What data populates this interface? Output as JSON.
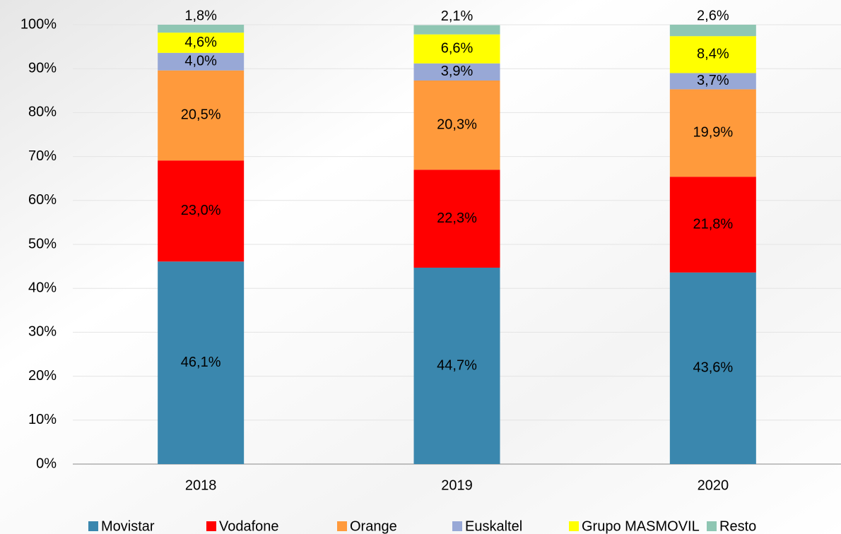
{
  "chart_data": {
    "type": "stacked_bar",
    "categories": [
      "2018",
      "2019",
      "2020"
    ],
    "series": [
      {
        "name": "Movistar",
        "color": "#3a87ae",
        "values": [
          46.1,
          44.7,
          43.6
        ],
        "value_labels": [
          "46,1%",
          "44,7%",
          "43,6%"
        ]
      },
      {
        "name": "Vodafone",
        "color": "#ff0000",
        "values": [
          23.0,
          22.3,
          21.8
        ],
        "value_labels": [
          "23,0%",
          "22,3%",
          "21,8%"
        ]
      },
      {
        "name": "Orange",
        "color": "#ff9a3c",
        "values": [
          20.5,
          20.3,
          19.9
        ],
        "value_labels": [
          "20,5%",
          "20,3%",
          "19,9%"
        ]
      },
      {
        "name": "Euskaltel",
        "color": "#98a8d6",
        "values": [
          4.0,
          3.9,
          3.7
        ],
        "value_labels": [
          "4,0%",
          "3,9%",
          "3,7%"
        ]
      },
      {
        "name": "Grupo MASMOVIL",
        "color": "#ffff00",
        "values": [
          4.6,
          6.6,
          8.4
        ],
        "value_labels": [
          "4,6%",
          "6,6%",
          "8,4%"
        ]
      },
      {
        "name": "Resto",
        "color": "#8fc6b3",
        "values": [
          1.8,
          2.1,
          2.6
        ],
        "value_labels": [
          "1,8%",
          "2,1%",
          "2,6%"
        ]
      }
    ],
    "ylim": [
      0,
      100
    ],
    "yticks": [
      {
        "value": 0,
        "label": "0%"
      },
      {
        "value": 10,
        "label": "10%"
      },
      {
        "value": 20,
        "label": "20%"
      },
      {
        "value": 30,
        "label": "30%"
      },
      {
        "value": 40,
        "label": "40%"
      },
      {
        "value": 50,
        "label": "50%"
      },
      {
        "value": 60,
        "label": "60%"
      },
      {
        "value": 70,
        "label": "70%"
      },
      {
        "value": 80,
        "label": "80%"
      },
      {
        "value": 90,
        "label": "90%"
      },
      {
        "value": 100,
        "label": "100%"
      }
    ],
    "grid": true,
    "legend": "bottom"
  }
}
